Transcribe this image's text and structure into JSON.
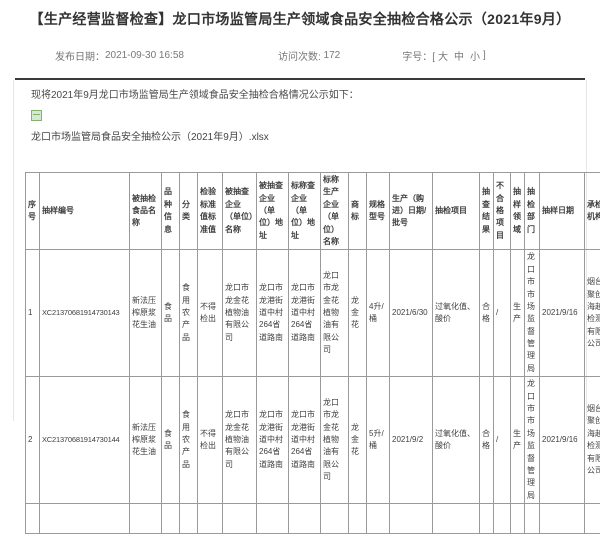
{
  "header": {
    "title": "【生产经营监督检查】龙口市场监管局生产领域食品安全抽检合格公示（2021年9月）",
    "publish_date_label": "发布日期：",
    "publish_date": "2021-09-30 16:58",
    "visits_label": "访问次数:",
    "visits_count": "172",
    "font_size_label": "字号：[",
    "font_size_options": [
      "大",
      "中",
      "小"
    ],
    "font_size_suffix": "]"
  },
  "content": {
    "intro_text": "现将2021年9月龙口市场监管局生产领域食品安全抽检合格情况公示如下：",
    "attachment": {
      "icon": "excel-file-icon",
      "filename": "龙口市场监管局食品安全抽检公示（2021年9月）.xlsx"
    }
  },
  "table": {
    "headers": [
      "序号",
      "抽样编号",
      "被抽检食品名称",
      "品种信息",
      "分类",
      "检验标准值标准值",
      "被抽查企业（单位）名称",
      "被抽查企业（单位）地址",
      "标称查企业（单位）地址",
      "标称生产企业（单位）名称",
      "商标",
      "规格型号",
      "生产（购进）日期/批号",
      "抽检项目",
      "抽查结果",
      "不合格项目",
      "抽样领域",
      "抽检部门",
      "抽样日期",
      "承检机构"
    ],
    "rows": [
      [
        "1",
        "XC21370681914730143",
        "新法压榨原浆花生油",
        "食品",
        "食用农产品",
        "不得检出",
        "龙口市龙金花植物油有限公司",
        "龙口市龙港街道中村264省道路南",
        "龙口市龙港街道中村264省道路南",
        "龙口市龙金花植物油有限公司",
        "龙金花",
        "4升/桶",
        "2021/6/30",
        "过氧化值、酸价",
        "合格",
        "/",
        "生产",
        "龙口市市场监督管理局",
        "2021/9/16",
        "烟台聚创海越检测有限公司"
      ],
      [
        "2",
        "XC21370681914730144",
        "新法压榨原浆花生油",
        "食品",
        "食用农产品",
        "不得检出",
        "龙口市龙金花植物油有限公司",
        "龙口市龙港街道中村264省道路南",
        "龙口市龙港街道中村264省道路南",
        "龙口市龙金花植物油有限公司",
        "龙金花",
        "5升/桶",
        "2021/9/2",
        "过氧化值、酸价",
        "合格",
        "/",
        "生产",
        "龙口市市场监督管理局",
        "2021/9/16",
        "烟台聚创海越检测有限公司"
      ]
    ]
  },
  "colors": {
    "rule": "#3a3a3a",
    "table_border": "#9a9a9a",
    "text": "#404040",
    "meta_text": "#777777",
    "attachment_icon_green": "#82b366"
  }
}
